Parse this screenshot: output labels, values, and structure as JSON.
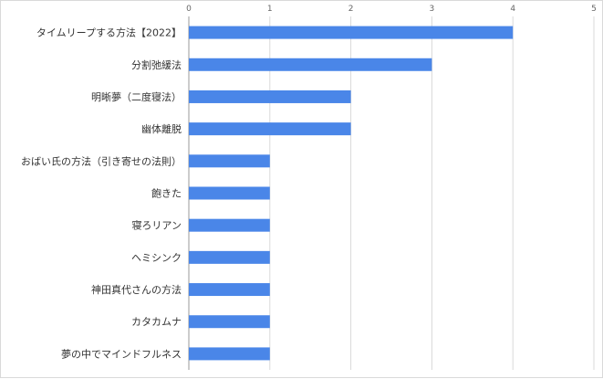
{
  "chart_data": {
    "type": "bar",
    "orientation": "horizontal",
    "title": "",
    "xlabel": "",
    "ylabel": "",
    "categories": [
      "タイムリープする方法【2022】",
      "分割弛緩法",
      "明晰夢（二度寝法）",
      "幽体離脱",
      "おばい氏の方法（引き寄せの法則）",
      "飽きた",
      "寝ろリアン",
      "ヘミシンク",
      "神田真代さんの方法",
      "カタカムナ",
      "夢の中でマインドフルネス"
    ],
    "values": [
      4,
      3,
      2,
      2,
      1,
      1,
      1,
      1,
      1,
      1,
      1
    ],
    "xlim": [
      0,
      5
    ],
    "xticks": [
      0,
      1,
      2,
      3,
      4,
      5
    ],
    "grid": "vertical",
    "legend": "none",
    "bar_color": "#4a86e8",
    "grid_color": "#d9d9d9",
    "axis_color": "#999999"
  }
}
